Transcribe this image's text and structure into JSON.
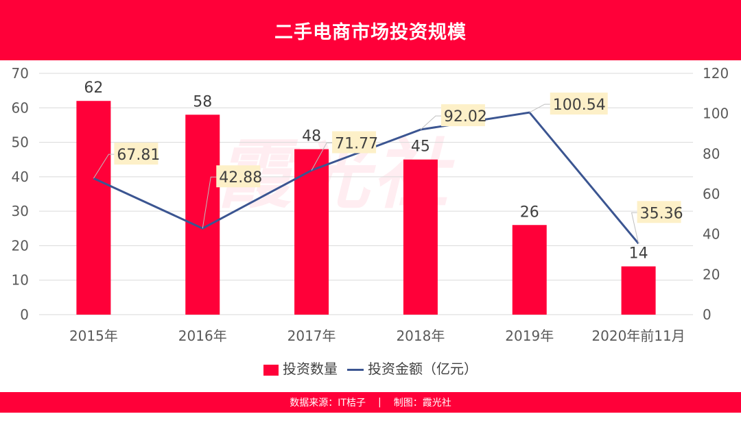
{
  "title": "二手电商市场投资规模",
  "watermark": "霞光社",
  "footer": {
    "source": "数据来源：IT桔子",
    "separator": "|",
    "maker": "制图：霞光社"
  },
  "colors": {
    "bar": "#ff0039",
    "line": "#3b5591",
    "label_bg": "#fdf0c8"
  },
  "chart_data": {
    "type": "bar+line",
    "categories": [
      "2015年",
      "2016年",
      "2017年",
      "2018年",
      "2019年",
      "2020年前11月"
    ],
    "series": [
      {
        "name": "投资数量",
        "type": "bar",
        "axis": "left",
        "values": [
          62,
          58,
          48,
          45,
          26,
          14
        ]
      },
      {
        "name": "投资金额（亿元）",
        "type": "line",
        "axis": "right",
        "values": [
          67.81,
          42.88,
          71.77,
          92.02,
          100.54,
          35.36
        ]
      }
    ],
    "ylim_left": [
      0,
      70
    ],
    "yticks_left": [
      0,
      10,
      20,
      30,
      40,
      50,
      60,
      70
    ],
    "ylim_right": [
      0,
      120
    ],
    "yticks_right": [
      0,
      20,
      40,
      60,
      80,
      100,
      120
    ],
    "grid": true,
    "legend": "bottom"
  }
}
